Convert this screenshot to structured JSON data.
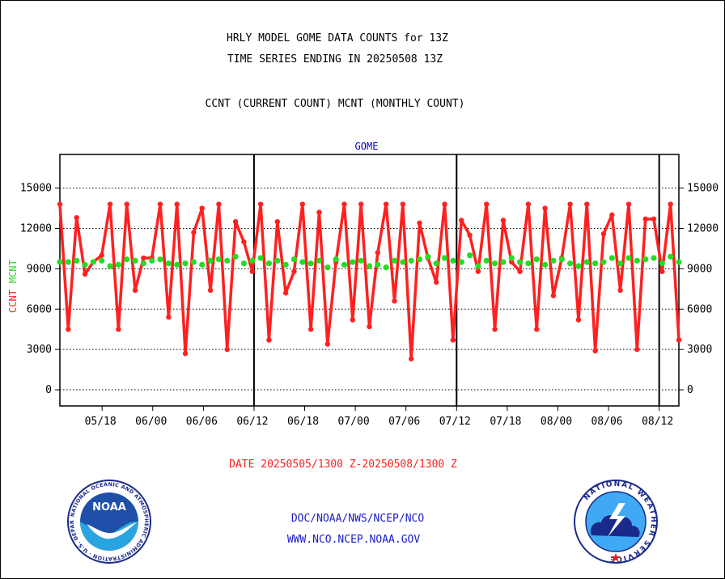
{
  "header": {
    "title_line1": "HRLY MODEL GOME DATA COUNTS for 13Z",
    "title_line2": "TIME SERIES ENDING IN 20250508 13Z",
    "subtitle": "CCNT (CURRENT COUNT) MCNT (MONTHLY COUNT)"
  },
  "footer": {
    "date_range": "DATE 20250505/1300 Z-20250508/1300 Z",
    "org_path": "DOC/NOAA/NWS/NCEP/NCO",
    "website": "WWW.NCO.NCEP.NOAA.GOV"
  },
  "logos": {
    "noaa_text": "NOAA",
    "noaa_ring": "NATIONAL OCEANIC AND ATMOSPHERIC ADMINISTRATION · U.S. DEPARTMENT OF COMMERCE",
    "nws_ring": "NATIONAL WEATHER SERVICE"
  },
  "colors": {
    "ccnt": "#ff2020",
    "mcnt": "#22dd22",
    "panel_label": "#0000cc",
    "date_label": "#ff2020",
    "link": "#1a1acc"
  },
  "chart_data": {
    "type": "line",
    "panel_title": "GOME",
    "ylabel_left": "CCNT",
    "ylabel_right": "MCNT",
    "ylim": [
      -1200,
      17500
    ],
    "yticks": [
      0,
      3000,
      6000,
      9000,
      12000,
      15000
    ],
    "ytick_labels": [
      "0",
      "3000",
      "6000",
      "9000",
      "12000",
      "15000"
    ],
    "xlim": [
      0,
      110
    ],
    "xticks": [
      {
        "x": 7.5,
        "label": "05/18"
      },
      {
        "x": 16.5,
        "label": "06/00"
      },
      {
        "x": 25.5,
        "label": "06/06"
      },
      {
        "x": 34.5,
        "label": "06/12"
      },
      {
        "x": 43.5,
        "label": "06/18"
      },
      {
        "x": 52.5,
        "label": "07/00"
      },
      {
        "x": 61.5,
        "label": "07/06"
      },
      {
        "x": 70.5,
        "label": "07/12"
      },
      {
        "x": 79.5,
        "label": "07/18"
      },
      {
        "x": 88.5,
        "label": "08/00"
      },
      {
        "x": 97.5,
        "label": "08/06"
      },
      {
        "x": 106.5,
        "label": "08/12"
      }
    ],
    "day_boundaries": [
      34.5,
      70.5,
      106.5
    ],
    "grid": true,
    "series": [
      {
        "name": "CCNT",
        "values": [
          13800,
          4500,
          12800,
          8600,
          9500,
          10000,
          13800,
          4500,
          13800,
          7400,
          9800,
          9800,
          13800,
          5400,
          13800,
          2700,
          11700,
          13500,
          7400,
          13800,
          3000,
          12500,
          11000,
          8800,
          13800,
          3700,
          12500,
          7200,
          8800,
          13800,
          4500,
          13200,
          3400,
          9500,
          13800,
          5200,
          13800,
          4700,
          10200,
          13800,
          6600,
          13800,
          2300,
          12400,
          9800,
          8000,
          13800,
          3700,
          12600,
          11500,
          8800,
          13800,
          4500,
          12600,
          9500,
          8800,
          13800,
          4500,
          13500,
          7000,
          9800,
          13800,
          5200,
          13800,
          2900,
          11600,
          13000,
          7400,
          13800,
          3000,
          12700,
          12700,
          8800,
          13800,
          3700
        ]
      },
      {
        "name": "MCNT",
        "values": [
          9500,
          9500,
          9600,
          9300,
          9500,
          9600,
          9200,
          9300,
          9700,
          9600,
          9400,
          9600,
          9700,
          9400,
          9300,
          9400,
          9500,
          9300,
          9600,
          9700,
          9600,
          9900,
          9400,
          9600,
          9800,
          9400,
          9600,
          9300,
          9700,
          9500,
          9400,
          9600,
          9100,
          9700,
          9300,
          9500,
          9600,
          9200,
          9300,
          9100,
          9600,
          9500,
          9600,
          9700,
          9900,
          9400,
          9800,
          9600,
          9500,
          10000,
          9200,
          9600,
          9400,
          9500,
          9800,
          9500,
          9400,
          9700,
          9300,
          9600,
          9700,
          9400,
          9200,
          9500,
          9400,
          9500,
          9800,
          9400,
          9800,
          9600,
          9700,
          9800,
          9400,
          9900,
          9500
        ]
      }
    ]
  }
}
